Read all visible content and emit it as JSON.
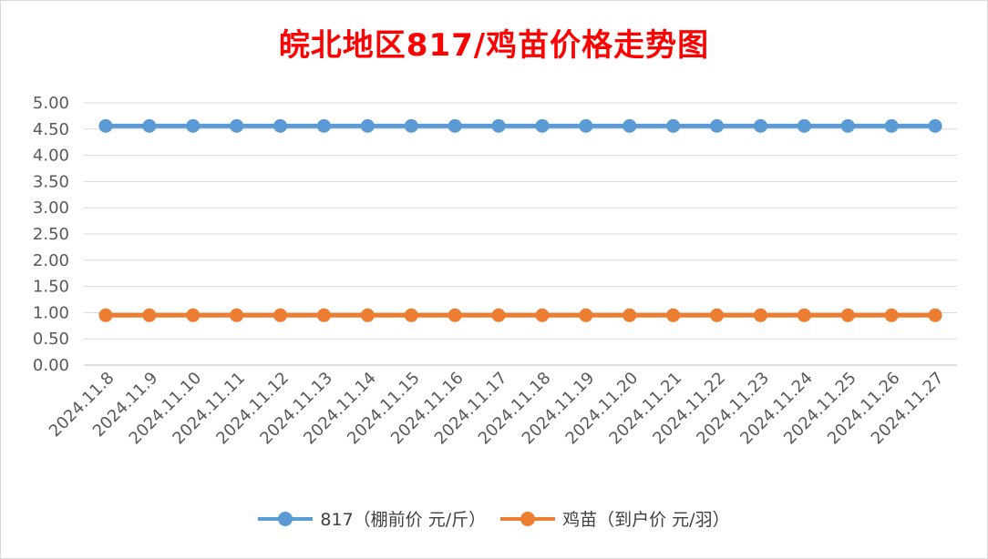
{
  "chart_data": {
    "type": "line",
    "title": "皖北地区817/鸡苗价格走势图",
    "categories": [
      "2024.11.8",
      "2024.11.9",
      "2024.11.10",
      "2024.11.11",
      "2024.11.12",
      "2024.11.13",
      "2024.11.14",
      "2024.11.15",
      "2024.11.16",
      "2024.11.17",
      "2024.11.18",
      "2024.11.19",
      "2024.11.20",
      "2024.11.21",
      "2024.11.22",
      "2024.11.23",
      "2024.11.24",
      "2024.11.25",
      "2024.11.26",
      "2024.11.27"
    ],
    "series": [
      {
        "name": "817（棚前价 元/斤）",
        "color": "#5b9bd5",
        "values": [
          4.56,
          4.56,
          4.56,
          4.56,
          4.56,
          4.56,
          4.56,
          4.56,
          4.56,
          4.56,
          4.56,
          4.56,
          4.56,
          4.56,
          4.56,
          4.56,
          4.56,
          4.56,
          4.56,
          4.56
        ]
      },
      {
        "name": "鸡苗（到户价 元/羽）",
        "color": "#ed7d31",
        "values": [
          0.95,
          0.95,
          0.95,
          0.95,
          0.95,
          0.95,
          0.95,
          0.95,
          0.95,
          0.95,
          0.95,
          0.95,
          0.95,
          0.95,
          0.95,
          0.95,
          0.95,
          0.95,
          0.95,
          0.95
        ]
      }
    ],
    "ylim": [
      0,
      5
    ],
    "yticks": [
      "0.00",
      "0.50",
      "1.00",
      "1.50",
      "2.00",
      "2.50",
      "3.00",
      "3.50",
      "4.00",
      "4.50",
      "5.00"
    ],
    "grid": true,
    "legend_position": "bottom"
  }
}
